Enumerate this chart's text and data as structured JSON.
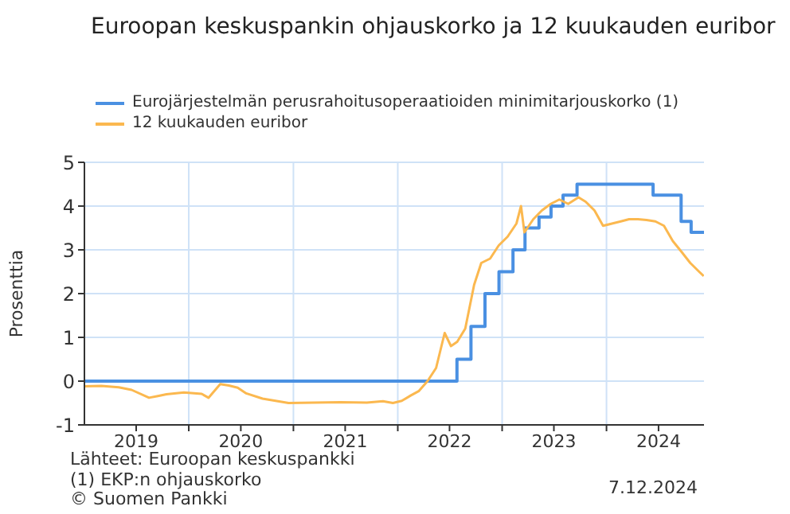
{
  "chart_data": {
    "type": "line",
    "title": "Euroopan keskuspankin ohjauskorko ja 12 kuukauden euribor",
    "ylabel": "Prosenttia",
    "xlim": [
      "2019-01-01",
      "2024-12-07"
    ],
    "xticks": [
      {
        "value": "2019-07-01",
        "label": "2019"
      },
      {
        "value": "2020-01-01",
        "label": null
      },
      {
        "value": "2020-07-01",
        "label": "2020"
      },
      {
        "value": "2021-01-01",
        "label": null
      },
      {
        "value": "2021-07-01",
        "label": "2021"
      },
      {
        "value": "2022-01-01",
        "label": null
      },
      {
        "value": "2022-07-01",
        "label": "2022"
      },
      {
        "value": "2023-01-01",
        "label": null
      },
      {
        "value": "2023-07-01",
        "label": "2023"
      },
      {
        "value": "2024-01-01",
        "label": null
      },
      {
        "value": "2024-07-01",
        "label": "2024"
      }
    ],
    "ylim": [
      -1,
      5
    ],
    "yticks": [
      -1,
      0,
      1,
      2,
      3,
      4,
      5
    ],
    "grid": true,
    "legend": "top left",
    "marker": "none",
    "series": [
      {
        "name": "Eurojärjestelmän perusrahoitusoperaatioiden minimitarjouskorko (1)",
        "type": "step",
        "color": "#4a90e2",
        "x": [
          "2019-01-01",
          "2022-07-27",
          "2022-09-14",
          "2022-11-02",
          "2022-12-21",
          "2023-02-08",
          "2023-03-22",
          "2023-05-10",
          "2023-06-21",
          "2023-08-02",
          "2023-09-20",
          "2024-06-12",
          "2024-09-18",
          "2024-10-23",
          "2024-12-07"
        ],
        "values": [
          0,
          0.5,
          1.25,
          2,
          2.5,
          3,
          3.5,
          3.75,
          4,
          4.25,
          4.5,
          4.25,
          3.65,
          3.4,
          3.4
        ]
      },
      {
        "name": "12 kuukauden euribor",
        "type": "line",
        "color": "#fbb84f",
        "x": [
          "2019-01-01",
          "2019-03-01",
          "2019-05-01",
          "2019-06-15",
          "2019-08-15",
          "2019-09-15",
          "2019-10-15",
          "2019-12-15",
          "2020-02-15",
          "2020-03-10",
          "2020-04-20",
          "2020-05-20",
          "2020-06-20",
          "2020-07-20",
          "2020-09-15",
          "2020-12-15",
          "2021-03-15",
          "2021-06-15",
          "2021-09-15",
          "2021-11-10",
          "2021-12-15",
          "2022-01-15",
          "2022-02-15",
          "2022-03-15",
          "2022-04-15",
          "2022-05-15",
          "2022-06-14",
          "2022-07-06",
          "2022-07-28",
          "2022-08-25",
          "2022-09-25",
          "2022-10-20",
          "2022-11-20",
          "2022-12-20",
          "2023-01-20",
          "2023-02-20",
          "2023-03-08",
          "2023-03-20",
          "2023-04-20",
          "2023-05-20",
          "2023-06-20",
          "2023-07-20",
          "2023-08-20",
          "2023-09-25",
          "2023-10-20",
          "2023-11-20",
          "2023-12-20",
          "2024-01-20",
          "2024-02-20",
          "2024-03-20",
          "2024-04-20",
          "2024-05-20",
          "2024-06-20",
          "2024-07-20",
          "2024-08-20",
          "2024-09-20",
          "2024-10-20",
          "2024-11-20",
          "2024-12-06"
        ],
        "values": [
          -0.12,
          -0.11,
          -0.14,
          -0.2,
          -0.38,
          -0.34,
          -0.3,
          -0.26,
          -0.29,
          -0.38,
          -0.07,
          -0.1,
          -0.15,
          -0.28,
          -0.4,
          -0.5,
          -0.49,
          -0.48,
          -0.49,
          -0.46,
          -0.5,
          -0.45,
          -0.33,
          -0.23,
          0,
          0.3,
          1.1,
          0.8,
          0.9,
          1.2,
          2.2,
          2.7,
          2.8,
          3.1,
          3.3,
          3.6,
          4.0,
          3.4,
          3.7,
          3.9,
          4.05,
          4.15,
          4.05,
          4.2,
          4.1,
          3.9,
          3.55,
          3.6,
          3.65,
          3.7,
          3.7,
          3.68,
          3.65,
          3.55,
          3.2,
          2.95,
          2.7,
          2.5,
          2.4
        ]
      }
    ],
    "annotations": [
      "Lähteet: Euroopan keskuspankki",
      "(1) EKP:n ohjauskorko",
      "© Suomen Pankki",
      "7.12.2024"
    ]
  }
}
